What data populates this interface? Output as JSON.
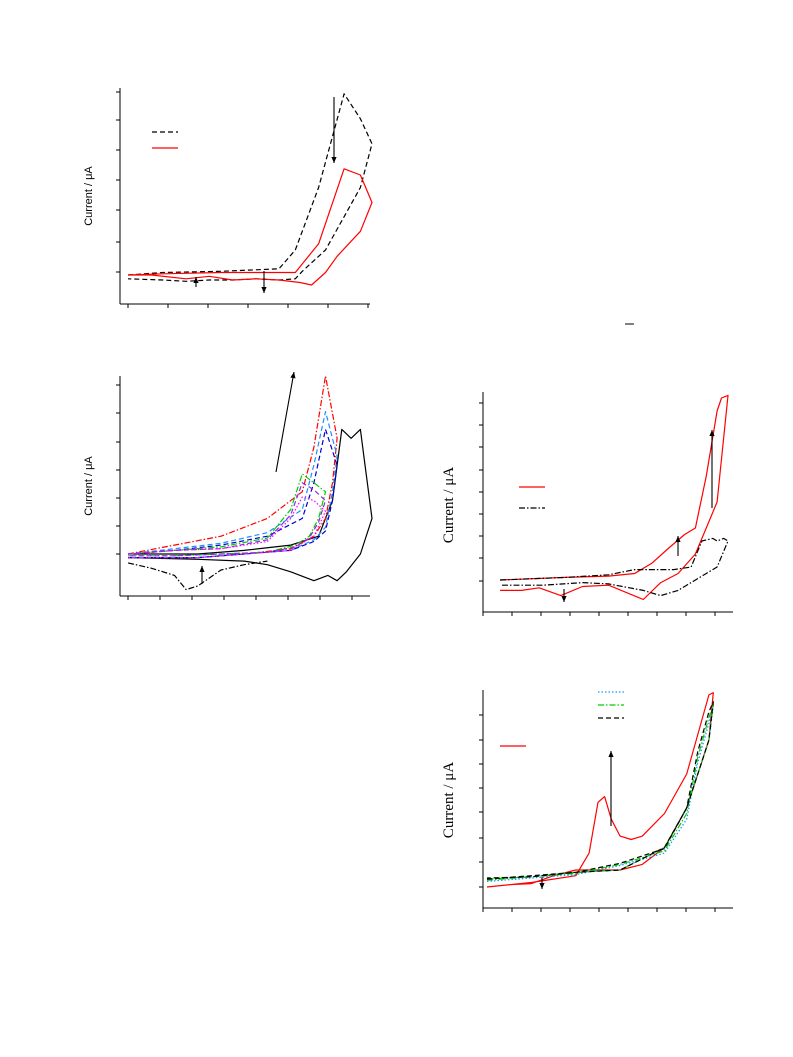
{
  "page": {
    "background": "#ffffff"
  },
  "chart_data": [
    {
      "type": "line",
      "panel": "top-left",
      "ylabel": "Current / μA",
      "xlabel": "",
      "title": "",
      "legend": {
        "placement": "top-left",
        "entries": [
          {
            "style": "dashed",
            "color": "#000000"
          },
          {
            "style": "solid",
            "color": "#ff0000"
          }
        ]
      },
      "series": [
        {
          "style": "dashed",
          "color": "#000000",
          "x": [
            0.0,
            0.15,
            0.4,
            0.65,
            0.72,
            0.82,
            0.93,
            1.0,
            1.05,
            1.0,
            0.85,
            0.75,
            0.72,
            0.65,
            0.55,
            0.45,
            0.35,
            0.25,
            0.15,
            0.0
          ],
          "y": [
            0.0,
            0.2,
            0.3,
            0.5,
            2.0,
            7.0,
            14.5,
            12.5,
            10.5,
            7.0,
            2.0,
            0.3,
            -0.3,
            -0.4,
            -0.3,
            -0.4,
            -0.4,
            -0.5,
            -0.4,
            -0.3
          ]
        },
        {
          "style": "solid",
          "color": "#ff0000",
          "x": [
            0.0,
            0.15,
            0.4,
            0.72,
            0.82,
            0.93,
            1.0,
            1.05,
            1.0,
            0.9,
            0.85,
            0.79,
            0.74,
            0.65,
            0.55,
            0.45,
            0.35,
            0.25,
            0.1,
            0.0
          ],
          "y": [
            0.0,
            0.1,
            0.2,
            0.2,
            2.5,
            8.5,
            8.0,
            5.8,
            3.5,
            1.5,
            0.2,
            -0.8,
            -0.6,
            -0.4,
            -0.3,
            -0.4,
            -0.1,
            -0.3,
            0.0,
            0.0
          ]
        }
      ],
      "arrows": [
        {
          "direction": "down"
        },
        {
          "direction": "down"
        },
        {
          "direction": "up"
        }
      ]
    },
    {
      "type": "line",
      "panel": "middle-left",
      "ylabel": "Current / μA",
      "xlabel": "",
      "title": "",
      "series": [
        {
          "style": "solid",
          "color": "#000000",
          "x": [
            0.0,
            0.3,
            0.5,
            0.7,
            0.82,
            0.88,
            0.92,
            0.96,
            1.0,
            1.02,
            1.05,
            1.0,
            0.94,
            0.9,
            0.86,
            0.8,
            0.7,
            0.6,
            0.5,
            0.3,
            0.0
          ],
          "y": [
            0.0,
            0.0,
            0.2,
            0.5,
            1.0,
            3.0,
            7.0,
            6.5,
            7.0,
            5.0,
            2.0,
            0.0,
            -1.0,
            -1.5,
            -1.2,
            -1.5,
            -1.0,
            -0.6,
            -0.4,
            -0.3,
            -0.2
          ]
        },
        {
          "style": "dash-dot",
          "color": "#000000",
          "x": [
            0.0,
            0.1,
            0.2,
            0.25,
            0.3,
            0.4,
            0.5,
            0.6
          ],
          "y": [
            -0.5,
            -0.8,
            -1.2,
            -2.0,
            -1.8,
            -0.9,
            -0.6,
            -0.4
          ]
        },
        {
          "style": "dash-dot",
          "color": "#ff0000",
          "x": [
            0.0,
            0.2,
            0.4,
            0.6,
            0.75,
            0.8,
            0.85,
            0.9,
            0.88,
            0.85,
            0.8,
            0.7,
            0.5,
            0.3,
            0.0
          ],
          "y": [
            0.0,
            0.5,
            1.0,
            2.0,
            3.5,
            6.0,
            10.0,
            6.5,
            4.0,
            2.0,
            1.0,
            0.3,
            0.0,
            -0.2,
            -0.2
          ]
        },
        {
          "style": "dashed",
          "color": "#1e90ff",
          "x": [
            0.0,
            0.2,
            0.4,
            0.6,
            0.75,
            0.8,
            0.85,
            0.9,
            0.88,
            0.85,
            0.8,
            0.7,
            0.5,
            0.3,
            0.0
          ],
          "y": [
            0.0,
            0.3,
            0.6,
            1.2,
            2.5,
            5.0,
            8.0,
            5.5,
            3.5,
            1.5,
            0.8,
            0.2,
            0.0,
            -0.2,
            -0.2
          ]
        },
        {
          "style": "dashed",
          "color": "#0000cd",
          "x": [
            0.0,
            0.2,
            0.4,
            0.6,
            0.75,
            0.8,
            0.85,
            0.9,
            0.88,
            0.85,
            0.8,
            0.7,
            0.5,
            0.3,
            0.0
          ],
          "y": [
            0.0,
            0.2,
            0.5,
            1.0,
            2.0,
            4.0,
            7.0,
            5.0,
            3.0,
            1.3,
            0.7,
            0.2,
            0.0,
            -0.2,
            -0.2
          ]
        },
        {
          "style": "dash-dot",
          "color": "#00cc00",
          "x": [
            0.0,
            0.2,
            0.4,
            0.6,
            0.7,
            0.75,
            0.8,
            0.85,
            0.82,
            0.78,
            0.72,
            0.6,
            0.4,
            0.2,
            0.0
          ],
          "y": [
            0.0,
            0.2,
            0.4,
            0.9,
            2.5,
            4.5,
            4.0,
            3.5,
            2.0,
            1.0,
            0.5,
            0.1,
            0.0,
            -0.1,
            -0.1
          ]
        },
        {
          "style": "dashed",
          "color": "#8a2be2",
          "x": [
            0.0,
            0.2,
            0.4,
            0.6,
            0.7,
            0.75,
            0.8,
            0.85,
            0.82,
            0.78,
            0.72,
            0.6,
            0.4,
            0.2,
            0.0
          ],
          "y": [
            0.0,
            0.2,
            0.3,
            0.8,
            2.2,
            4.0,
            3.6,
            3.0,
            1.8,
            0.9,
            0.4,
            0.1,
            0.0,
            -0.1,
            -0.1
          ]
        },
        {
          "style": "dotted",
          "color": "#ff00ff",
          "x": [
            0.0,
            0.2,
            0.4,
            0.6,
            0.7,
            0.75,
            0.8,
            0.85,
            0.8,
            0.7,
            0.5,
            0.3,
            0.0
          ],
          "y": [
            0.0,
            0.2,
            0.3,
            0.7,
            2.0,
            3.2,
            3.0,
            2.4,
            1.0,
            0.2,
            0.0,
            -0.2,
            -0.2
          ]
        }
      ],
      "arrows": [
        {
          "direction": "up"
        },
        {
          "direction": "up"
        }
      ]
    },
    {
      "type": "line",
      "panel": "middle-right",
      "ylabel": "Current / μA",
      "xlabel": "",
      "title": "",
      "legend": {
        "placement": "center-left",
        "entries": [
          {
            "style": "solid",
            "color": "#ff0000"
          },
          {
            "style": "dash-dot",
            "color": "#000000"
          }
        ]
      },
      "series": [
        {
          "style": "solid",
          "color": "#ff0000",
          "x": [
            0.0,
            0.3,
            0.5,
            0.62,
            0.7,
            0.78,
            0.85,
            0.9,
            0.95,
            1.0,
            1.02,
            1.05,
            1.0,
            0.9,
            0.82,
            0.74,
            0.66,
            0.5,
            0.38,
            0.28,
            0.18,
            0.1,
            0.0
          ],
          "y": [
            0.0,
            0.2,
            0.3,
            0.5,
            1.3,
            2.5,
            3.5,
            4.0,
            8.0,
            13.0,
            14.0,
            14.2,
            6.0,
            2.0,
            0.5,
            -0.2,
            -1.5,
            -0.4,
            -0.5,
            -1.2,
            -0.6,
            -0.8,
            -0.8
          ]
        },
        {
          "style": "dash-dot",
          "color": "#000000",
          "x": [
            0.0,
            0.3,
            0.5,
            0.62,
            0.7,
            0.8,
            0.88,
            0.93,
            0.98,
            1.0,
            1.03,
            1.05,
            1.0,
            0.9,
            0.82,
            0.74,
            0.66,
            0.5,
            0.38,
            0.2,
            0.0
          ],
          "y": [
            0.0,
            0.2,
            0.4,
            0.8,
            0.8,
            0.8,
            1.0,
            3.0,
            3.2,
            3.0,
            3.2,
            3.0,
            1.0,
            0.0,
            -0.8,
            -1.2,
            -0.8,
            -0.3,
            -0.2,
            -0.4,
            -0.4
          ]
        }
      ],
      "arrows": [
        {
          "direction": "up"
        },
        {
          "direction": "up"
        },
        {
          "direction": "down"
        }
      ]
    },
    {
      "type": "line",
      "panel": "bottom-right",
      "ylabel": "Current / μA",
      "xlabel": "",
      "title": "",
      "legend": {
        "placement": "top",
        "entries": [
          {
            "style": "dotted",
            "color": "#1e90ff"
          },
          {
            "style": "dash-dot",
            "color": "#00cc00"
          },
          {
            "style": "dashed",
            "color": "#000000"
          },
          {
            "style": "solid",
            "color": "#ff0000"
          }
        ]
      },
      "series": [
        {
          "style": "solid",
          "color": "#ff0000",
          "x": [
            0.0,
            0.2,
            0.4,
            0.46,
            0.5,
            0.53,
            0.56,
            0.6,
            0.65,
            0.7,
            0.8,
            0.9,
            0.95,
            1.0,
            1.02,
            1.0,
            0.9,
            0.8,
            0.7,
            0.6,
            0.4,
            0.3,
            0.2,
            0.1,
            0.0
          ],
          "y": [
            0.0,
            0.4,
            1.0,
            3.0,
            7.5,
            8.0,
            6.0,
            4.5,
            4.2,
            4.5,
            6.5,
            10.0,
            13.5,
            17.0,
            17.2,
            13.0,
            7.0,
            3.5,
            2.0,
            1.5,
            1.5,
            1.0,
            0.3,
            0.2,
            0.0
          ]
        },
        {
          "style": "dotted",
          "color": "#1e90ff",
          "x": [
            0.0,
            0.2,
            0.4,
            0.6,
            0.8,
            0.9,
            0.95,
            1.0,
            1.02,
            1.0,
            0.9,
            0.8,
            0.6,
            0.4,
            0.2,
            0.0
          ],
          "y": [
            0.5,
            0.8,
            1.1,
            1.9,
            3.0,
            6.0,
            11.0,
            14.5,
            16.0,
            13.0,
            7.0,
            3.5,
            1.5,
            1.3,
            0.9,
            0.7
          ]
        },
        {
          "style": "dash-dot",
          "color": "#00cc00",
          "x": [
            0.0,
            0.2,
            0.4,
            0.6,
            0.8,
            0.9,
            0.95,
            1.0,
            1.02,
            1.0,
            0.9,
            0.8,
            0.6,
            0.4,
            0.2,
            0.0
          ],
          "y": [
            0.6,
            0.9,
            1.2,
            2.0,
            3.2,
            6.5,
            11.5,
            15.0,
            16.2,
            13.0,
            7.0,
            3.5,
            1.5,
            1.3,
            0.9,
            0.7
          ]
        },
        {
          "style": "dashed",
          "color": "#000000",
          "x": [
            0.0,
            0.2,
            0.4,
            0.6,
            0.8,
            0.9,
            0.95,
            1.0,
            1.02,
            1.0,
            0.9,
            0.8,
            0.6,
            0.4,
            0.2,
            0.0
          ],
          "y": [
            0.7,
            1.0,
            1.3,
            2.1,
            3.4,
            7.0,
            12.0,
            15.5,
            16.4,
            13.0,
            7.0,
            3.5,
            1.5,
            1.3,
            0.9,
            0.8
          ]
        }
      ],
      "arrows": [
        {
          "direction": "up"
        },
        {
          "direction": "down"
        }
      ]
    }
  ]
}
